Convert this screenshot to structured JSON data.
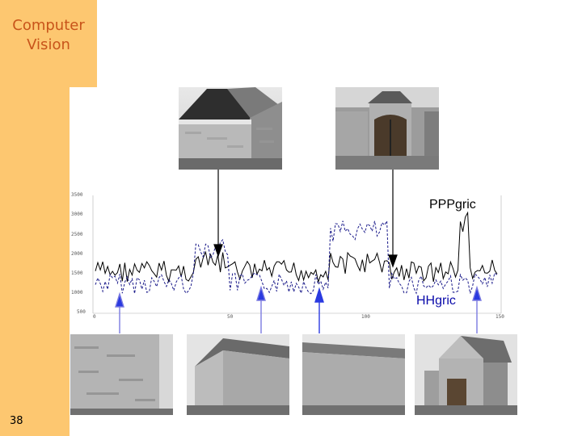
{
  "sidebar": {
    "title_line1": "Computer",
    "title_line2": "Vision"
  },
  "slide_number": "38",
  "labels": {
    "pppgric": "PPPgric",
    "hhgric": "HHgric"
  },
  "plot": {
    "yticks": [
      "3500",
      "3000",
      "2500",
      "2000",
      "1500",
      "1000",
      "500"
    ],
    "xticks": [
      "0",
      "50",
      "100",
      "150"
    ],
    "series_colors": {
      "solid": "#000000",
      "dashed": "#1a1a8a"
    },
    "arrow_colors": {
      "black": "#000000",
      "blue": "#2a3ae0"
    }
  },
  "photos": {
    "top": [
      "barn-gable-end",
      "farm-gate"
    ],
    "bottom": [
      "barn-wall-left",
      "barn-wall-long",
      "barn-wall-long-2",
      "barn-gable-door"
    ]
  }
}
